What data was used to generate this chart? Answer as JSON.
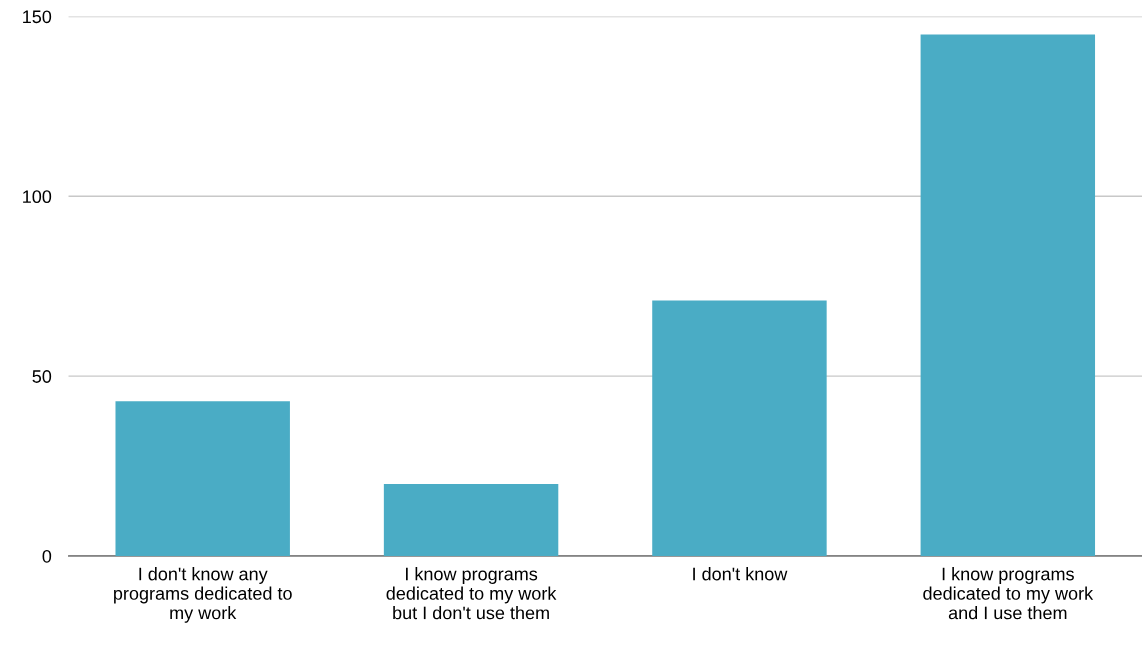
{
  "chart_data": {
    "type": "bar",
    "categories": [
      "I don't know any programs dedicated to my work",
      "I know programs dedicated to my work but I don't use them",
      "I don't know",
      "I know programs dedicated to my work and I use them"
    ],
    "values": [
      43,
      20,
      71,
      145
    ],
    "color": "#4aacc5",
    "ylim": [
      0,
      150
    ],
    "yticks": [
      0,
      50,
      100,
      150
    ],
    "grid": "y",
    "legend": false
  }
}
